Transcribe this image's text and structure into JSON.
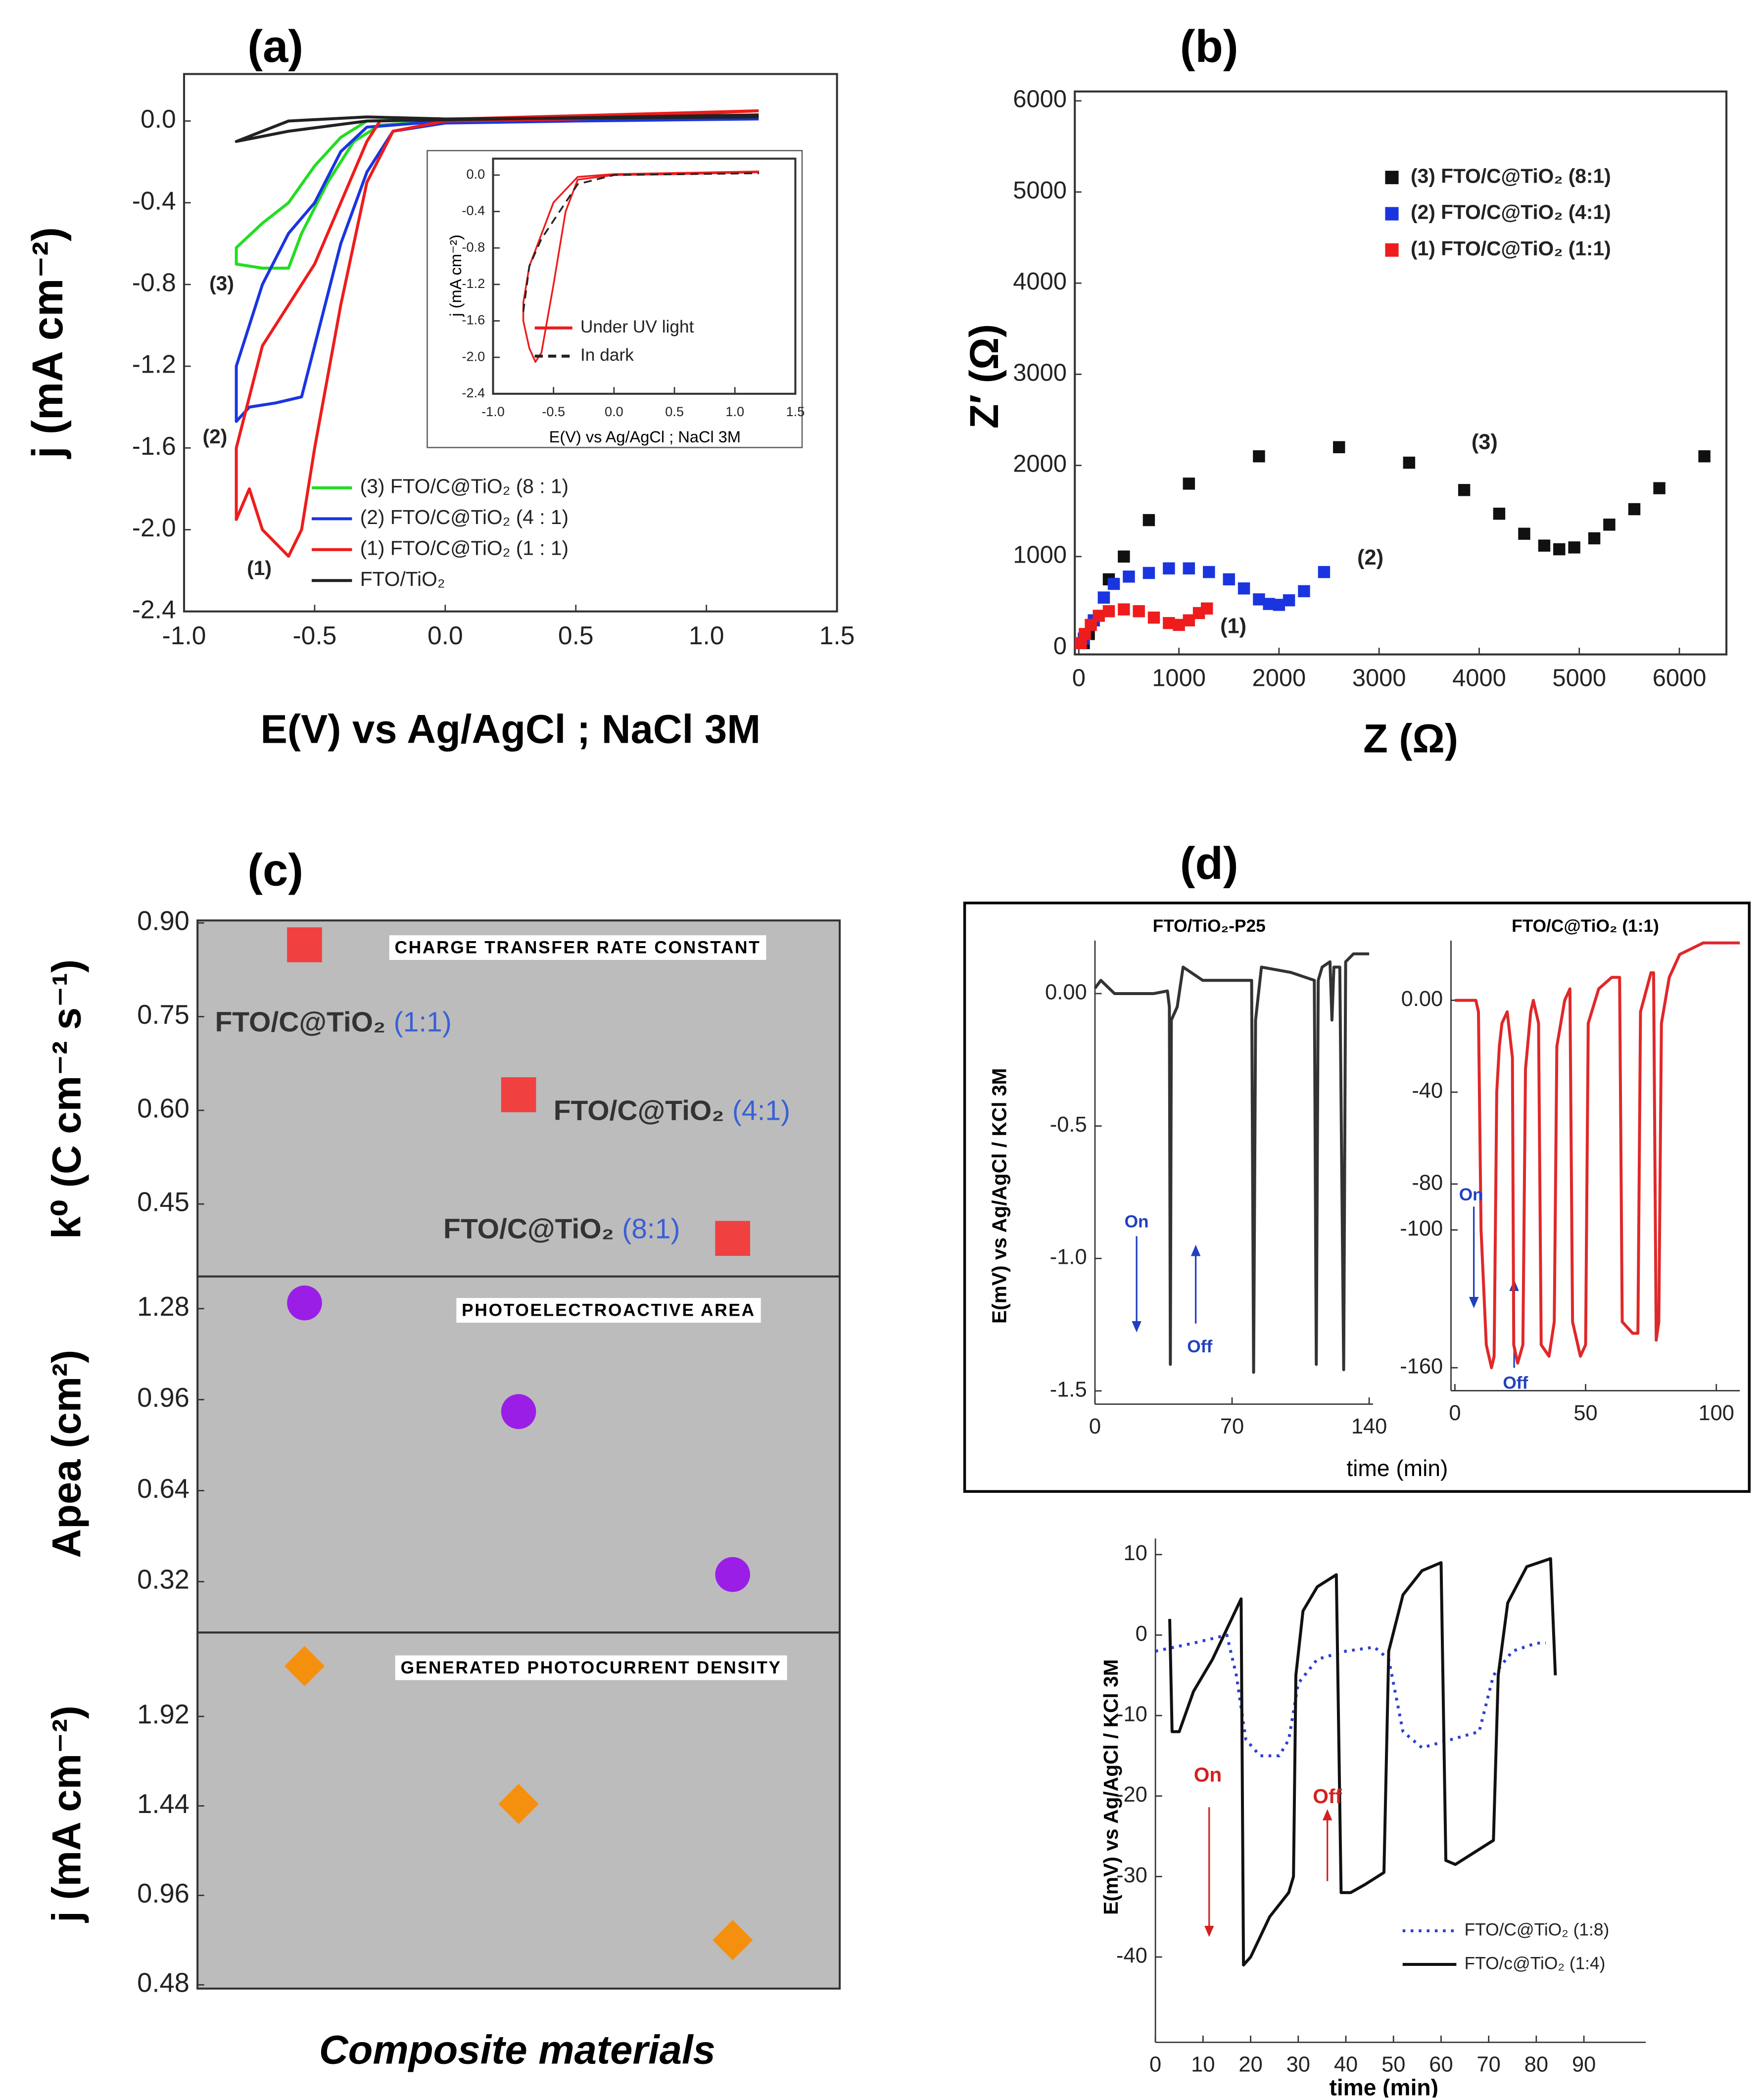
{
  "chart_data": [
    {
      "type": "line",
      "title": "(a)",
      "x_label": "E(V) vs Ag/AgCl ; NaCl 3M",
      "y_label": "j (mA cm⁻²)",
      "xlim": [
        -1.0,
        1.5
      ],
      "ylim": [
        -2.4,
        0.23
      ],
      "xticks": [
        {
          "value": -1,
          "label": "-1.0"
        },
        -0.5,
        {
          "value": 0,
          "label": "0.0"
        },
        0.5,
        {
          "value": 1,
          "label": "1.0"
        },
        1.5
      ],
      "yticks": [
        {
          "value": 0,
          "label": "0.0"
        },
        -0.4,
        -0.8,
        -1.2,
        -1.6,
        {
          "value": -2,
          "label": "-2.0"
        },
        -2.4
      ],
      "annotations": [
        {
          "text": "(1)"
        },
        {
          "text": "(2)"
        },
        {
          "text": "(3)"
        }
      ],
      "series": [
        {
          "name": "(3) FTO/C@TiO₂ (8 : 1)",
          "color": "#22dd22",
          "x": [
            1.2,
            0.5,
            0,
            -0.25,
            -0.35,
            -0.45,
            -0.55,
            -0.6,
            -0.7,
            -0.8,
            -0.8,
            -0.7,
            -0.6,
            -0.5,
            -0.4,
            -0.3,
            0,
            1.2
          ],
          "values": [
            0.05,
            0.02,
            0.0,
            -0.02,
            -0.1,
            -0.3,
            -0.55,
            -0.72,
            -0.72,
            -0.7,
            -0.62,
            -0.5,
            -0.4,
            -0.22,
            -0.08,
            0,
            0.01,
            0.02
          ]
        },
        {
          "name": "(2) FTO/C@TiO₂ (4 : 1)",
          "color": "#1a35e0",
          "x": [
            1.2,
            0.5,
            0,
            -0.2,
            -0.3,
            -0.4,
            -0.5,
            -0.55,
            -0.65,
            -0.75,
            -0.8,
            -0.8,
            -0.7,
            -0.6,
            -0.5,
            -0.4,
            -0.3,
            0,
            1.2
          ],
          "values": [
            0.01,
            0,
            -0.01,
            -0.05,
            -0.25,
            -0.6,
            -1.1,
            -1.35,
            -1.38,
            -1.4,
            -1.47,
            -1.2,
            -0.8,
            -0.55,
            -0.4,
            -0.15,
            -0.03,
            0,
            0.02
          ]
        },
        {
          "name": "(1) FTO/C@TiO₂ (1 : 1)",
          "color": "#ee1c1c",
          "x": [
            1.2,
            0.5,
            0,
            -0.2,
            -0.3,
            -0.4,
            -0.5,
            -0.55,
            -0.6,
            -0.7,
            -0.75,
            -0.8,
            -0.8,
            -0.7,
            -0.6,
            -0.5,
            -0.4,
            -0.3,
            -0.25,
            1.2
          ],
          "values": [
            0.05,
            0.01,
            0,
            -0.05,
            -0.3,
            -0.9,
            -1.6,
            -2.0,
            -2.13,
            -2.0,
            -1.8,
            -1.95,
            -1.6,
            -1.1,
            -0.9,
            -0.7,
            -0.4,
            -0.1,
            0,
            0.05
          ]
        },
        {
          "name": "FTO/TiO₂",
          "color": "#222222",
          "x": [
            1.2,
            0,
            -0.3,
            -0.6,
            -0.8,
            -0.6,
            -0.3,
            1.2
          ],
          "values": [
            0.02,
            0.01,
            0.02,
            0.0,
            -0.1,
            -0.05,
            0,
            0.03
          ]
        }
      ]
    },
    {
      "type": "line",
      "x_label": "E(V) vs Ag/AgCl ; NaCl 3M",
      "y_label": "j (mA cm⁻²)",
      "xlim": [
        -1.0,
        1.5
      ],
      "ylim": [
        -2.4,
        0.18
      ],
      "xticks": [
        {
          "value": -1,
          "label": "-1.0"
        },
        -0.5,
        {
          "value": 0,
          "label": "0.0"
        },
        0.5,
        {
          "value": 1,
          "label": "1.0"
        },
        1.5
      ],
      "yticks": [
        {
          "value": 0,
          "label": "0.0"
        },
        -0.4,
        -0.8,
        -1.2,
        -1.6,
        {
          "value": -2,
          "label": "-2.0"
        },
        -2.4
      ],
      "series": [
        {
          "name": "Under UV light",
          "color": "#ee1c1c",
          "line_style": "solid",
          "x": [
            1.2,
            0.5,
            0,
            -0.3,
            -0.4,
            -0.5,
            -0.6,
            -0.65,
            -0.7,
            -0.75,
            -0.75,
            -0.7,
            -0.5,
            -0.3,
            0,
            1.2
          ],
          "values": [
            0.03,
            0.01,
            0,
            -0.05,
            -0.4,
            -1.2,
            -1.95,
            -2.05,
            -1.9,
            -1.6,
            -1.4,
            -1.0,
            -0.3,
            -0.02,
            0.01,
            0.04
          ]
        },
        {
          "name": "In dark",
          "color": "#222222",
          "line_style": "dashed",
          "x": [
            -0.75,
            -0.7,
            -0.6,
            -0.5,
            -0.4,
            -0.3,
            0,
            1.2
          ],
          "values": [
            -1.5,
            -1.0,
            -0.7,
            -0.5,
            -0.3,
            -0.1,
            0,
            0.02
          ]
        }
      ]
    },
    {
      "type": "scatter",
      "title": "(b)",
      "x_label": "Z (Ω)",
      "y_label": "Z′ (Ω)",
      "xlim": [
        -40,
        6470
      ],
      "ylim": [
        -74,
        6103
      ],
      "xticks": [
        0,
        1000,
        2000,
        3000,
        4000,
        5000,
        6000
      ],
      "yticks": [
        0,
        1000,
        2000,
        3000,
        4000,
        5000,
        6000
      ],
      "marker": "square",
      "annotations": [
        {
          "text": "(3)"
        },
        {
          "text": "(2)"
        },
        {
          "text": "(1)"
        }
      ],
      "series": [
        {
          "name": "(3) FTO/C@TiO₂ (8:1)",
          "color": "#111111",
          "x": [
            50,
            100,
            150,
            250,
            300,
            450,
            700,
            1100,
            1800,
            2600,
            3300,
            3850,
            4200,
            4450,
            4650,
            4800,
            4950,
            5150,
            5300,
            5550,
            5800,
            6250
          ],
          "values": [
            50,
            150,
            300,
            550,
            750,
            1000,
            1400,
            1800,
            2100,
            2200,
            2030,
            1730,
            1470,
            1250,
            1120,
            1080,
            1100,
            1200,
            1350,
            1520,
            1750,
            2100
          ]
        },
        {
          "name": "(2) FTO/C@TiO₂ (4:1)",
          "color": "#1a35e0",
          "x": [
            50,
            150,
            250,
            350,
            500,
            700,
            900,
            1100,
            1300,
            1500,
            1650,
            1800,
            1900,
            2000,
            2100,
            2250,
            2450
          ],
          "values": [
            100,
            300,
            550,
            700,
            780,
            820,
            870,
            870,
            830,
            750,
            650,
            530,
            480,
            470,
            520,
            620,
            830
          ]
        },
        {
          "name": "(1) FTO/C@TiO₂ (1:1)",
          "color": "#ee1c1c",
          "x": [
            20,
            60,
            120,
            200,
            300,
            450,
            600,
            750,
            900,
            1000,
            1100,
            1200,
            1280
          ],
          "values": [
            50,
            150,
            250,
            350,
            400,
            420,
            400,
            330,
            270,
            250,
            300,
            380,
            430
          ]
        }
      ]
    },
    {
      "type": "scatter",
      "title": "(c)",
      "y_label": "k⁰ (C cm⁻² s⁻¹)",
      "inner_title": "CHARGE TRANSFER RATE CONSTANT",
      "categories": [
        null,
        null,
        null
      ],
      "values": [
        0.865,
        0.625,
        0.395
      ],
      "color": "#f04040",
      "marker": "square",
      "ylim": [
        0.334,
        0.904
      ],
      "yticks": [
        {
          "value": 0.9,
          "label": "0.90"
        },
        0.75,
        {
          "value": 0.6,
          "label": "0.60"
        },
        0.45
      ],
      "ratio_color": "#3a5fd6",
      "point_labels": [
        {
          "text": "FTO/C@TiO₂",
          "ratio": "(1:1)"
        },
        {
          "text": "FTO/C@TiO₂",
          "ratio": "(4:1)"
        },
        {
          "text": "FTO/C@TiO₂",
          "ratio": "(8:1)"
        }
      ]
    },
    {
      "type": "scatter",
      "y_label": "Apea (cm²)",
      "inner_title": "PHOTOELECTROACTIVE AREA",
      "categories": [
        null,
        null,
        null
      ],
      "values": [
        1.3,
        0.918,
        0.345
      ],
      "color": "#9b1ee6",
      "marker": "circle",
      "ylim": [
        0.141,
        1.393
      ],
      "yticks": [
        1.28,
        0.96,
        0.64,
        0.32
      ]
    },
    {
      "type": "scatter",
      "y_label": "j (mA cm⁻²)",
      "inner_title": "GENERATED PHOTOCURRENT DENSITY",
      "x_label": "Composite materials",
      "categories": [
        null,
        null,
        null
      ],
      "values": [
        2.19,
        1.45,
        0.72
      ],
      "color": "#f5900f",
      "marker": "diamond",
      "ylim": [
        0.46,
        2.37
      ],
      "yticks": [
        1.92,
        1.44,
        0.96,
        0.48
      ]
    },
    {
      "type": "line",
      "title": "(d)",
      "subtitle": "FTO/TiO₂-P25",
      "y_label": "E(mV) vs Ag/AgCl / KCl 3M",
      "x_label": "time (min)",
      "xlim": [
        0,
        142
      ],
      "ylim": [
        -1.55,
        0.2
      ],
      "xticks": [
        0,
        70,
        140
      ],
      "yticks": [
        {
          "value": 0,
          "label": "0.00"
        },
        -0.5,
        {
          "value": -1,
          "label": "-1.0"
        },
        -1.5
      ],
      "annotations": [
        {
          "text": "On",
          "color": "#2040c0"
        },
        {
          "text": "Off",
          "color": "#2040c0"
        }
      ],
      "series": [
        {
          "color": "#333333",
          "x": [
            0,
            3,
            10,
            20,
            30,
            37,
            38,
            38.5,
            39,
            42,
            45,
            55,
            75,
            80,
            81,
            82,
            85,
            100,
            112,
            113,
            114,
            116,
            120,
            121,
            122,
            125,
            127,
            128,
            132,
            140
          ],
          "values": [
            0.02,
            0.05,
            0.0,
            0.0,
            0.0,
            0.01,
            -0.05,
            -1.4,
            -0.1,
            -0.05,
            0.1,
            0.05,
            0.05,
            0.05,
            -1.43,
            -0.1,
            0.1,
            0.08,
            0.05,
            -1.4,
            0.05,
            0.1,
            0.12,
            -0.1,
            0.1,
            0.1,
            -1.42,
            0.12,
            0.15,
            0.15
          ]
        }
      ]
    },
    {
      "type": "line",
      "subtitle": "FTO/C@TiO₂ (1:1)",
      "xlim": [
        -1.5,
        109
      ],
      "ylim": [
        -170,
        26
      ],
      "xticks": [
        0,
        50,
        100
      ],
      "yticks": [
        {
          "value": 0,
          "label": "0.00"
        },
        -40,
        -80,
        -100,
        -160
      ],
      "annotations": [
        {
          "text": "On",
          "color": "#2040c0"
        },
        {
          "text": "Off",
          "color": "#2040c0"
        }
      ],
      "series": [
        {
          "color": "#e0282a",
          "x": [
            0,
            8,
            9,
            10,
            12,
            14,
            15,
            16,
            17,
            18,
            20,
            22,
            22.5,
            24,
            26,
            27,
            29,
            30,
            32,
            33,
            36,
            38,
            39,
            42,
            44,
            45,
            48,
            50,
            51,
            55,
            60,
            63,
            64,
            68,
            70,
            71,
            75,
            76,
            77,
            78,
            79,
            82,
            86,
            95,
            109
          ],
          "values": [
            0,
            0,
            -5,
            -100,
            -150,
            -160,
            -155,
            -40,
            -20,
            -10,
            -5,
            -25,
            -150,
            -158,
            -150,
            -30,
            -5,
            0,
            -10,
            -150,
            -155,
            -140,
            -20,
            0,
            5,
            -140,
            -155,
            -150,
            -10,
            5,
            10,
            10,
            -140,
            -145,
            -145,
            -5,
            12,
            12,
            -148,
            -140,
            -10,
            10,
            20,
            25,
            25
          ]
        }
      ]
    },
    {
      "type": "line",
      "y_label": "E(mV) vs Ag/AgCl / KCl 3M",
      "x_label": "time (min)",
      "xlim": [
        0,
        103
      ],
      "ylim": [
        -50.6,
        12
      ],
      "xticks": [
        0,
        10,
        20,
        30,
        40,
        50,
        60,
        70,
        80,
        90
      ],
      "yticks": [
        10,
        0,
        -10,
        -20,
        -30,
        -40
      ],
      "annotations": [
        {
          "text": "On",
          "color": "#d42020"
        },
        {
          "text": "Off",
          "color": "#d42020"
        }
      ],
      "series": [
        {
          "name": "FTO/C@TiO₂ (1:8)",
          "color": "#2a3fd0",
          "line_style": "dotted",
          "x": [
            0,
            8,
            15,
            17,
            19,
            22,
            26,
            28,
            30,
            34,
            40,
            46,
            49,
            52,
            56,
            62,
            68,
            71,
            75,
            80,
            82
          ],
          "values": [
            -2,
            -1,
            0,
            -5,
            -13,
            -15,
            -15,
            -13,
            -6,
            -3,
            -2,
            -1.5,
            -3,
            -12,
            -14,
            -13,
            -12,
            -5,
            -2,
            -1,
            -1
          ]
        },
        {
          "name": "FTO/c@TiO₂ (1:4)",
          "color": "#111111",
          "line_style": "solid",
          "x": [
            3,
            3.5,
            5,
            8,
            12,
            16,
            18,
            18.5,
            20,
            24,
            28,
            29,
            29.5,
            31,
            34,
            38,
            39,
            41,
            44,
            48,
            49,
            52,
            56,
            60,
            61,
            63,
            67,
            71,
            72,
            74,
            78,
            83,
            84
          ],
          "values": [
            2,
            -12,
            -12,
            -7,
            -3,
            2,
            4.5,
            -41,
            -40,
            -35,
            -32,
            -30,
            -5,
            3,
            6,
            7.5,
            -32,
            -32,
            -31,
            -29.5,
            -2,
            5,
            8,
            9,
            -28,
            -28.5,
            -27,
            -25.5,
            -5,
            4,
            8.5,
            9.5,
            -5
          ]
        }
      ]
    }
  ]
}
